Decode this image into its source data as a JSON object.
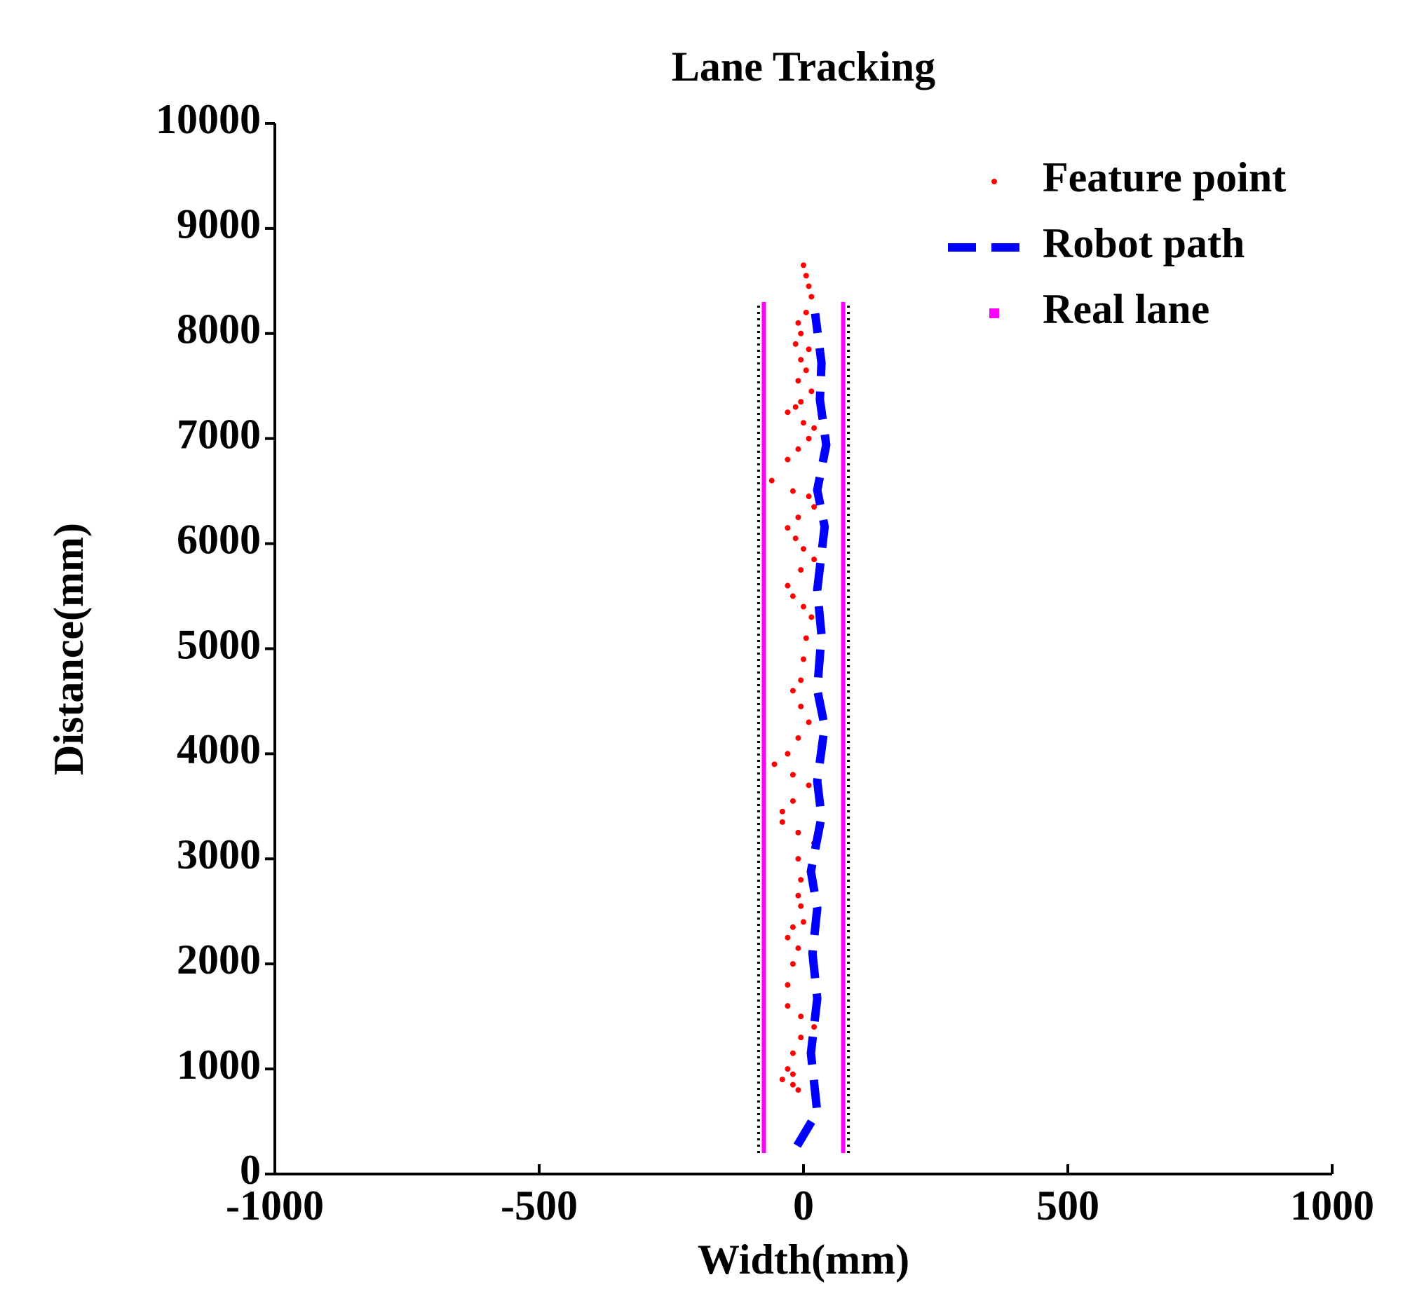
{
  "chart_data": {
    "type": "line",
    "title": "Lane Tracking",
    "x_label": "Width(mm)",
    "y_label": "Distance(mm)",
    "xlim": [
      -1000,
      1000
    ],
    "ylim": [
      0,
      10000
    ],
    "xticks": [
      -1000,
      -500,
      0,
      500,
      1000
    ],
    "yticks": [
      0,
      1000,
      2000,
      3000,
      4000,
      5000,
      6000,
      7000,
      8000,
      9000,
      10000
    ],
    "legend": "upper right",
    "series": [
      {
        "name": "Feature point",
        "color": "#ff0000",
        "style": "points",
        "x": [
          0,
          5,
          10,
          15,
          5,
          -10,
          -5,
          -15,
          10,
          -5,
          5,
          -10,
          15,
          -5,
          -15,
          -30,
          0,
          20,
          10,
          -10,
          -30,
          -60,
          -20,
          10,
          20,
          -10,
          -30,
          -15,
          0,
          20,
          -5,
          -30,
          -20,
          0,
          15,
          5,
          0,
          -5,
          -20,
          -5,
          10,
          -10,
          -30,
          -55,
          -20,
          10,
          -20,
          -40,
          -40,
          -10,
          20,
          -10,
          -5,
          -10,
          -5,
          0,
          -20,
          -30,
          -10,
          -20,
          -30,
          -30,
          -5,
          20,
          -5,
          -20,
          -30,
          -20,
          -40,
          -20,
          -10
        ],
        "values": [
          8650,
          8550,
          8450,
          8350,
          8200,
          8100,
          8000,
          7900,
          7850,
          7750,
          7650,
          7550,
          7450,
          7350,
          7300,
          7250,
          7150,
          7100,
          7000,
          6900,
          6800,
          6600,
          6500,
          6450,
          6350,
          6250,
          6150,
          6050,
          5950,
          5850,
          5750,
          5600,
          5500,
          5400,
          5300,
          5100,
          4900,
          4700,
          4600,
          4450,
          4300,
          4150,
          4000,
          3900,
          3800,
          3700,
          3550,
          3450,
          3350,
          3250,
          3150,
          3000,
          2800,
          2650,
          2550,
          2400,
          2350,
          2250,
          2150,
          2000,
          1800,
          1600,
          1500,
          1400,
          1300,
          1150,
          1000,
          950,
          900,
          850,
          800
        ]
      },
      {
        "name": "Robot path",
        "color": "#0000ff",
        "style": "dashed",
        "x": [
          -12,
          26,
          14,
          26,
          17,
          26,
          14,
          34,
          26,
          40,
          26,
          34,
          26,
          40,
          26,
          43,
          31,
          34,
          22
        ],
        "values": [
          270,
          590,
          1150,
          1670,
          2100,
          2530,
          2880,
          3400,
          3740,
          4260,
          4610,
          5130,
          5560,
          6160,
          6510,
          6940,
          7370,
          7720,
          8190
        ]
      },
      {
        "name": "Real lane",
        "color": "#ff00ff",
        "style": "solid",
        "x": [
          -75,
          -75,
          null,
          75,
          75
        ],
        "values": [
          200,
          8300,
          null,
          200,
          8300
        ]
      },
      {
        "color": "#000000",
        "style": "dotted",
        "x": [
          -85,
          -85,
          null,
          85,
          85
        ],
        "values": [
          200,
          8300,
          null,
          200,
          8300
        ]
      }
    ]
  }
}
